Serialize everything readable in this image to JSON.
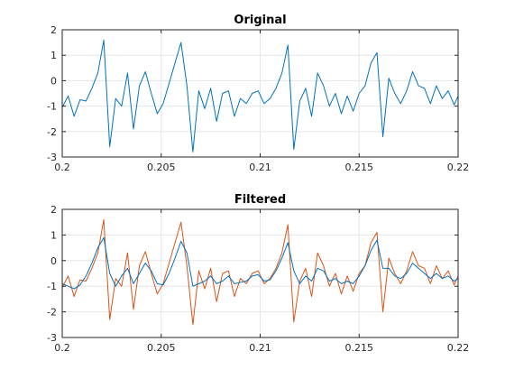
{
  "colors": {
    "series_blue": "#0072bd",
    "series_orange": "#d95319",
    "axis": "#262626",
    "grid": "#e6e6e6"
  },
  "chart_data": [
    {
      "type": "line",
      "title": "Original",
      "xlim": [
        0.2,
        0.22
      ],
      "ylim": [
        -3,
        2
      ],
      "xticks": [
        0.2,
        0.205,
        0.21,
        0.215,
        0.22
      ],
      "xtick_labels": [
        "0.2",
        "0.205",
        "0.21",
        "0.215",
        "0.22"
      ],
      "yticks": [
        -3,
        -2,
        -1,
        0,
        1,
        2
      ],
      "ytick_labels": [
        "-3",
        "-2",
        "-1",
        "0",
        "1",
        "2"
      ],
      "grid": true,
      "series": [
        {
          "color": "#0072bd",
          "x": [
            0.2,
            0.2003,
            0.2006,
            0.2009,
            0.2012,
            0.2015,
            0.2018,
            0.2021,
            0.2024,
            0.2027,
            0.203,
            0.2033,
            0.2036,
            0.2039,
            0.2042,
            0.2045,
            0.2048,
            0.2051,
            0.2054,
            0.2057,
            0.206,
            0.2063,
            0.2066,
            0.2069,
            0.2072,
            0.2075,
            0.2078,
            0.2081,
            0.2084,
            0.2087,
            0.209,
            0.2093,
            0.2096,
            0.2099,
            0.2102,
            0.2105,
            0.2108,
            0.2111,
            0.2114,
            0.2117,
            0.212,
            0.2123,
            0.2126,
            0.2129,
            0.2132,
            0.2135,
            0.2138,
            0.2141,
            0.2144,
            0.2147,
            0.215,
            0.2153,
            0.2156,
            0.2159,
            0.2162,
            0.2165,
            0.2168,
            0.2171,
            0.2174,
            0.2177,
            0.218,
            0.2183,
            0.2186,
            0.2189,
            0.2192,
            0.2195,
            0.2198,
            0.22
          ],
          "y": [
            -1.05,
            -0.6,
            -1.4,
            -0.75,
            -0.8,
            -0.3,
            0.3,
            1.6,
            -2.6,
            -0.7,
            -1.0,
            0.3,
            -1.9,
            -0.2,
            0.35,
            -0.5,
            -1.3,
            -0.9,
            -0.1,
            0.7,
            1.5,
            -0.2,
            -2.8,
            -0.4,
            -1.1,
            -0.3,
            -1.6,
            -0.5,
            -0.4,
            -1.4,
            -0.7,
            -0.9,
            -0.5,
            -0.4,
            -0.9,
            -0.7,
            -0.3,
            0.3,
            1.4,
            -2.7,
            -0.8,
            -0.3,
            -1.4,
            0.3,
            -0.2,
            -1.0,
            -0.5,
            -1.3,
            -0.6,
            -1.2,
            -0.5,
            -0.2,
            0.7,
            1.1,
            -2.2,
            0.1,
            -0.5,
            -0.9,
            -0.4,
            0.35,
            -0.2,
            -0.3,
            -0.9,
            -0.2,
            -0.7,
            -0.4,
            -0.95,
            -0.6
          ]
        }
      ]
    },
    {
      "type": "line",
      "title": "Filtered",
      "xlim": [
        0.2,
        0.22
      ],
      "ylim": [
        -3,
        2
      ],
      "xticks": [
        0.2,
        0.205,
        0.21,
        0.215,
        0.22
      ],
      "xtick_labels": [
        "0.2",
        "0.205",
        "0.21",
        "0.215",
        "0.22"
      ],
      "yticks": [
        -3,
        -2,
        -1,
        0,
        1,
        2
      ],
      "ytick_labels": [
        "-3",
        "-2",
        "-1",
        "0",
        "1",
        "2"
      ],
      "grid": true,
      "series": [
        {
          "color": "#d95319",
          "x": [
            0.2,
            0.2003,
            0.2006,
            0.2009,
            0.2012,
            0.2015,
            0.2018,
            0.2021,
            0.2024,
            0.2027,
            0.203,
            0.2033,
            0.2036,
            0.2039,
            0.2042,
            0.2045,
            0.2048,
            0.2051,
            0.2054,
            0.2057,
            0.206,
            0.2063,
            0.2066,
            0.2069,
            0.2072,
            0.2075,
            0.2078,
            0.2081,
            0.2084,
            0.2087,
            0.209,
            0.2093,
            0.2096,
            0.2099,
            0.2102,
            0.2105,
            0.2108,
            0.2111,
            0.2114,
            0.2117,
            0.212,
            0.2123,
            0.2126,
            0.2129,
            0.2132,
            0.2135,
            0.2138,
            0.2141,
            0.2144,
            0.2147,
            0.215,
            0.2153,
            0.2156,
            0.2159,
            0.2162,
            0.2165,
            0.2168,
            0.2171,
            0.2174,
            0.2177,
            0.218,
            0.2183,
            0.2186,
            0.2189,
            0.2192,
            0.2195,
            0.2198,
            0.22
          ],
          "y": [
            -1.05,
            -0.6,
            -1.4,
            -0.75,
            -0.8,
            -0.3,
            0.3,
            1.6,
            -2.3,
            -0.7,
            -1.0,
            0.3,
            -1.9,
            -0.2,
            0.35,
            -0.5,
            -1.3,
            -0.9,
            -0.1,
            0.7,
            1.5,
            -0.2,
            -2.5,
            -0.4,
            -1.1,
            -0.3,
            -1.6,
            -0.5,
            -0.4,
            -1.4,
            -0.7,
            -0.9,
            -0.5,
            -0.4,
            -0.9,
            -0.7,
            -0.3,
            0.3,
            1.4,
            -2.4,
            -0.8,
            -0.3,
            -1.4,
            0.3,
            -0.2,
            -1.0,
            -0.5,
            -1.3,
            -0.6,
            -1.2,
            -0.5,
            -0.2,
            0.7,
            1.1,
            -2.0,
            0.1,
            -0.5,
            -0.9,
            -0.4,
            0.35,
            -0.2,
            -0.3,
            -0.9,
            -0.2,
            -0.7,
            -0.4,
            -0.95,
            -0.6
          ]
        },
        {
          "color": "#0072bd",
          "x": [
            0.2,
            0.2003,
            0.2006,
            0.2009,
            0.2012,
            0.2015,
            0.2018,
            0.2021,
            0.2024,
            0.2027,
            0.203,
            0.2033,
            0.2036,
            0.2039,
            0.2042,
            0.2045,
            0.2048,
            0.2051,
            0.2054,
            0.2057,
            0.206,
            0.2063,
            0.2066,
            0.2069,
            0.2072,
            0.2075,
            0.2078,
            0.2081,
            0.2084,
            0.2087,
            0.209,
            0.2093,
            0.2096,
            0.2099,
            0.2102,
            0.2105,
            0.2108,
            0.2111,
            0.2114,
            0.2117,
            0.212,
            0.2123,
            0.2126,
            0.2129,
            0.2132,
            0.2135,
            0.2138,
            0.2141,
            0.2144,
            0.2147,
            0.215,
            0.2153,
            0.2156,
            0.2159,
            0.2162,
            0.2165,
            0.2168,
            0.2171,
            0.2174,
            0.2177,
            0.218,
            0.2183,
            0.2186,
            0.2189,
            0.2192,
            0.2195,
            0.2198,
            0.22
          ],
          "y": [
            -0.9,
            -1.0,
            -1.1,
            -0.95,
            -0.6,
            -0.1,
            0.5,
            0.9,
            -0.5,
            -1.0,
            -0.6,
            -0.3,
            -0.9,
            -0.5,
            -0.1,
            -0.4,
            -0.9,
            -0.95,
            -0.5,
            0.1,
            0.75,
            0.3,
            -1.0,
            -0.9,
            -0.8,
            -0.6,
            -0.9,
            -0.8,
            -0.6,
            -0.9,
            -0.85,
            -0.8,
            -0.6,
            -0.55,
            -0.8,
            -0.75,
            -0.4,
            0.1,
            0.7,
            -0.4,
            -0.9,
            -0.6,
            -0.8,
            -0.3,
            -0.4,
            -0.8,
            -0.7,
            -0.9,
            -0.8,
            -0.9,
            -0.6,
            -0.2,
            0.4,
            0.8,
            -0.3,
            -0.3,
            -0.6,
            -0.7,
            -0.5,
            -0.1,
            -0.3,
            -0.5,
            -0.7,
            -0.5,
            -0.7,
            -0.6,
            -0.8,
            -0.7
          ]
        }
      ]
    }
  ]
}
